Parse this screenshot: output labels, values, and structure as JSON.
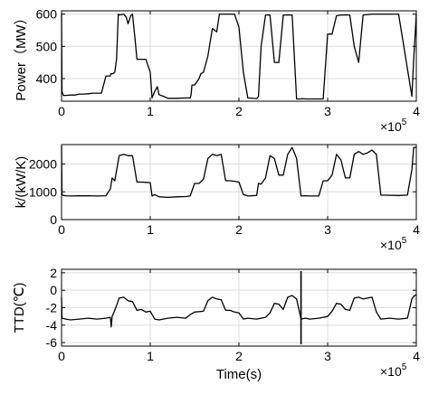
{
  "chart_data": [
    {
      "type": "line",
      "ylabel": "Power（MW）",
      "xlabel": "",
      "x_exponent_base": "×10",
      "x_exponent_power": "5",
      "xlim": [
        0,
        4
      ],
      "ylim": [
        330,
        610
      ],
      "xticks": [
        "0",
        "1",
        "2",
        "3",
        "4"
      ],
      "yticks": [
        400,
        500,
        600
      ],
      "ytick_labels": [
        "400",
        "500",
        "600"
      ],
      "grid": true,
      "series": [
        {
          "name": "",
          "x": [
            0.0,
            0.005,
            0.02,
            0.05,
            0.1,
            0.15,
            0.2,
            0.25,
            0.3,
            0.35,
            0.4,
            0.45,
            0.5,
            0.55,
            0.555,
            0.58,
            0.6,
            0.62,
            0.64,
            0.65,
            0.7,
            0.73,
            0.75,
            0.78,
            0.8,
            0.83,
            0.85,
            0.88,
            0.9,
            0.95,
            1.0,
            1.02,
            1.05,
            1.08,
            1.1,
            1.15,
            1.2,
            1.3,
            1.4,
            1.45,
            1.46,
            1.47,
            1.5,
            1.55,
            1.57,
            1.6,
            1.65,
            1.7,
            1.75,
            1.78,
            1.8,
            1.82,
            1.85,
            1.9,
            1.95,
            2.0,
            2.05,
            2.1,
            2.2,
            2.22,
            2.25,
            2.3,
            2.35,
            2.4,
            2.45,
            2.5,
            2.55,
            2.6,
            2.65,
            2.7,
            2.72,
            2.75,
            2.8,
            2.95,
            3.0,
            3.05,
            3.1,
            3.15,
            3.2,
            3.25,
            3.3,
            3.35,
            3.4,
            3.5,
            3.55,
            3.6,
            3.8,
            3.95,
            3.97,
            4.0
          ],
          "y": [
            600,
            360,
            348,
            348,
            349,
            349,
            352,
            352,
            353,
            355,
            355,
            355,
            408,
            408,
            415,
            415,
            420,
            460,
            600,
            597,
            600,
            590,
            570,
            595,
            600,
            520,
            460,
            460,
            460,
            460,
            420,
            340,
            360,
            375,
            350,
            345,
            339,
            339,
            340,
            340,
            350,
            380,
            380,
            400,
            415,
            420,
            470,
            555,
            545,
            600,
            600,
            600,
            600,
            600,
            600,
            560,
            420,
            340,
            338,
            345,
            500,
            597,
            597,
            450,
            450,
            597,
            597,
            597,
            337,
            337,
            338,
            337,
            337,
            337,
            538,
            538,
            595,
            597,
            597,
            597,
            500,
            450,
            597,
            600,
            600,
            600,
            600,
            345,
            460,
            600
          ]
        }
      ]
    },
    {
      "type": "line",
      "ylabel": "k/(kW/K)",
      "xlabel": "",
      "x_exponent_base": "×10",
      "x_exponent_power": "5",
      "xlim": [
        0,
        4
      ],
      "ylim": [
        0,
        2700
      ],
      "xticks": [
        "0",
        "1",
        "2",
        "3",
        "4"
      ],
      "yticks": [
        0,
        1000,
        2000
      ],
      "ytick_labels": [
        "0",
        "1000",
        "2000"
      ],
      "grid": true,
      "series": [
        {
          "name": "",
          "x": [
            0.0,
            0.005,
            0.02,
            0.05,
            0.1,
            0.2,
            0.3,
            0.4,
            0.5,
            0.55,
            0.57,
            0.6,
            0.65,
            0.7,
            0.75,
            0.8,
            0.85,
            0.9,
            0.95,
            1.0,
            1.02,
            1.05,
            1.1,
            1.2,
            1.3,
            1.4,
            1.45,
            1.5,
            1.55,
            1.6,
            1.65,
            1.7,
            1.75,
            1.8,
            1.85,
            1.9,
            1.95,
            2.0,
            2.05,
            2.1,
            2.2,
            2.22,
            2.25,
            2.3,
            2.35,
            2.4,
            2.45,
            2.5,
            2.55,
            2.6,
            2.65,
            2.7,
            2.75,
            2.8,
            2.9,
            2.95,
            3.0,
            3.05,
            3.1,
            3.15,
            3.2,
            3.25,
            3.3,
            3.35,
            3.4,
            3.45,
            3.5,
            3.55,
            3.6,
            3.8,
            3.9,
            3.95,
            3.97,
            4.0
          ],
          "y": [
            2650,
            900,
            870,
            860,
            850,
            855,
            860,
            850,
            860,
            1100,
            1500,
            1400,
            2300,
            2350,
            2300,
            2300,
            1350,
            1350,
            1340,
            1330,
            850,
            900,
            820,
            800,
            820,
            830,
            850,
            1300,
            1300,
            1450,
            2200,
            2350,
            2300,
            2350,
            1400,
            1400,
            1380,
            1350,
            900,
            850,
            870,
            1300,
            1280,
            1500,
            2300,
            2200,
            1600,
            1600,
            2350,
            2600,
            2200,
            850,
            860,
            850,
            850,
            1400,
            1400,
            1600,
            2350,
            2150,
            1500,
            1500,
            2350,
            2450,
            2350,
            2400,
            2500,
            2350,
            880,
            870,
            880,
            1800,
            2600,
            2600
          ]
        }
      ]
    },
    {
      "type": "line",
      "ylabel": "TTD(℃)",
      "xlabel": "Time(s)",
      "x_exponent_base": "×10",
      "x_exponent_power": "5",
      "xlim": [
        0,
        4
      ],
      "ylim": [
        -6.4,
        2.4
      ],
      "xticks": [
        "0",
        "1",
        "2",
        "3",
        "4"
      ],
      "yticks": [
        -6,
        -4,
        -2,
        0,
        2
      ],
      "ytick_labels": [
        "-6",
        "-4",
        "-2",
        "0",
        "2"
      ],
      "grid": true,
      "series": [
        {
          "name": "",
          "x": [
            0.0,
            0.005,
            0.05,
            0.1,
            0.2,
            0.3,
            0.4,
            0.5,
            0.55,
            0.56,
            0.57,
            0.6,
            0.65,
            0.7,
            0.75,
            0.8,
            0.85,
            0.9,
            0.95,
            1.0,
            1.05,
            1.1,
            1.2,
            1.3,
            1.4,
            1.45,
            1.5,
            1.6,
            1.65,
            1.7,
            1.75,
            1.8,
            1.85,
            1.9,
            1.95,
            2.0,
            2.05,
            2.1,
            2.2,
            2.3,
            2.35,
            2.4,
            2.45,
            2.5,
            2.55,
            2.6,
            2.65,
            2.7,
            2.75,
            2.8,
            2.9,
            3.0,
            3.05,
            3.1,
            3.15,
            3.2,
            3.25,
            3.3,
            3.35,
            3.4,
            3.45,
            3.5,
            3.55,
            3.6,
            3.7,
            3.8,
            3.9,
            3.95,
            3.97,
            4.0
          ],
          "y": [
            -0.8,
            -3.2,
            -3.3,
            -3.4,
            -3.3,
            -3.2,
            -3.3,
            -3.2,
            -3.1,
            -4.2,
            -3.0,
            -2.3,
            -0.9,
            -0.8,
            -1.2,
            -1.3,
            -2.3,
            -2.2,
            -2.5,
            -2.4,
            -3.3,
            -3.4,
            -3.2,
            -3.1,
            -3.2,
            -2.8,
            -2.5,
            -2.4,
            -1.2,
            -0.8,
            -1.0,
            -1.1,
            -2.3,
            -2.3,
            -2.5,
            -2.6,
            -3.3,
            -3.2,
            -3.3,
            -3.1,
            -2.6,
            -1.5,
            -1.6,
            -2.2,
            -0.8,
            -0.6,
            -1.0,
            -3.3,
            -3.2,
            -3.3,
            -3.2,
            -3.0,
            -2.4,
            -1.5,
            -1.6,
            -2.2,
            -2.3,
            -0.9,
            -0.8,
            -1.0,
            -0.9,
            -0.8,
            -2.5,
            -3.3,
            -3.2,
            -3.3,
            -3.2,
            -1.0,
            -0.7,
            -0.5
          ]
        }
      ],
      "annotation": {
        "x": 2.7,
        "y_from": -6.2,
        "y_to": 2.2
      }
    }
  ]
}
